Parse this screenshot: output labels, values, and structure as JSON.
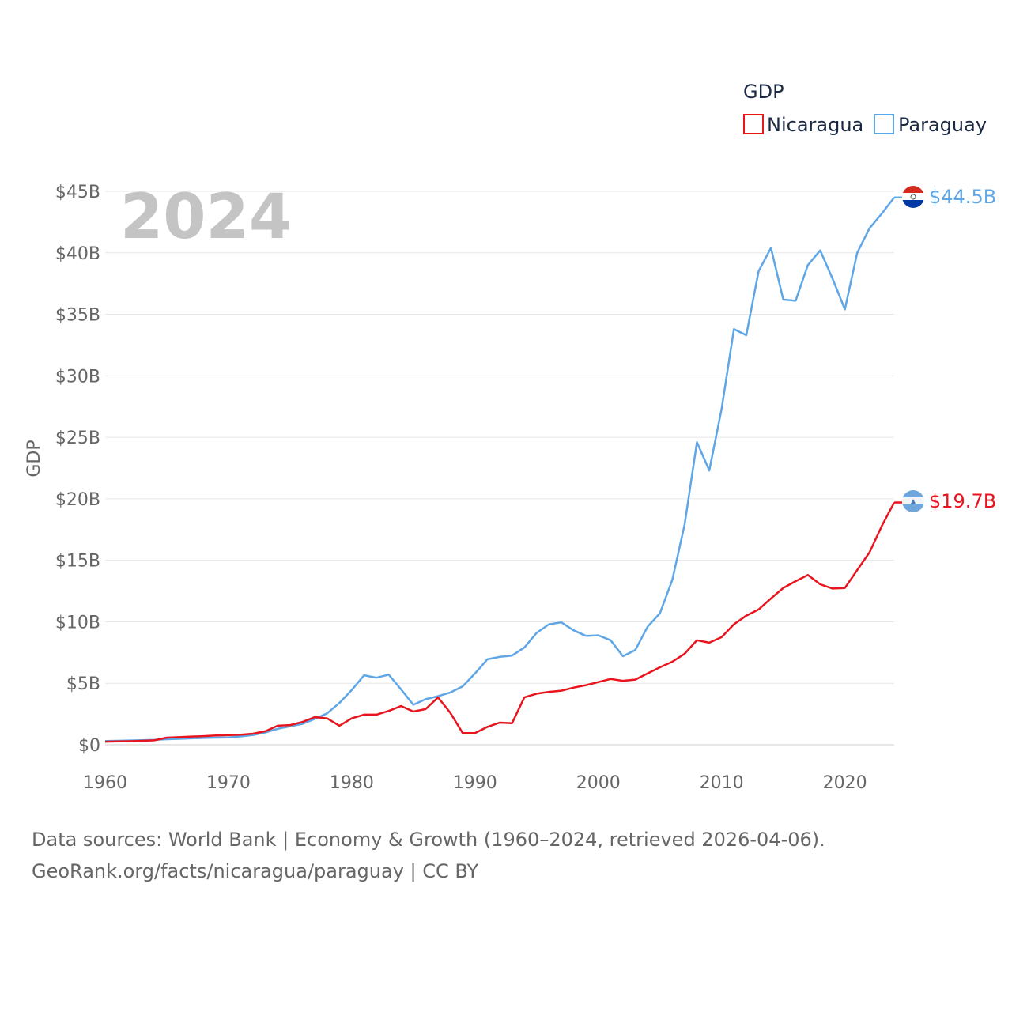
{
  "chart_data": {
    "type": "line",
    "ylabel": "GDP",
    "legend_title": "GDP",
    "legend_position": "top-right",
    "year_label": "2024",
    "x_ticks": [
      1960,
      1970,
      1980,
      1990,
      2000,
      2010,
      2020
    ],
    "x_tick_labels": [
      "1960",
      "1970",
      "1980",
      "1990",
      "2000",
      "2010",
      "2020"
    ],
    "y_ticks": [
      0,
      5,
      10,
      15,
      20,
      25,
      30,
      35,
      40,
      45
    ],
    "y_tick_labels": [
      "$0",
      "$5B",
      "$10B",
      "$15B",
      "$20B",
      "$25B",
      "$30B",
      "$35B",
      "$40B",
      "$45B"
    ],
    "xlim": [
      1960,
      2024
    ],
    "ylim": [
      0,
      45
    ],
    "grid": true,
    "x": [
      1960,
      1961,
      1962,
      1963,
      1964,
      1965,
      1966,
      1967,
      1968,
      1969,
      1970,
      1971,
      1972,
      1973,
      1974,
      1975,
      1976,
      1977,
      1978,
      1979,
      1980,
      1981,
      1982,
      1983,
      1984,
      1985,
      1986,
      1987,
      1988,
      1989,
      1990,
      1991,
      1992,
      1993,
      1994,
      1995,
      1996,
      1997,
      1998,
      1999,
      2000,
      2001,
      2002,
      2003,
      2004,
      2005,
      2006,
      2007,
      2008,
      2009,
      2010,
      2011,
      2012,
      2013,
      2014,
      2015,
      2016,
      2017,
      2018,
      2019,
      2020,
      2021,
      2022,
      2023,
      2024
    ],
    "series": [
      {
        "name": "Nicaragua",
        "color": "#e8141e",
        "end_label": "$19.7B",
        "flag": "nicaragua-flag",
        "values": [
          0.25,
          0.27,
          0.29,
          0.32,
          0.36,
          0.58,
          0.62,
          0.67,
          0.7,
          0.75,
          0.78,
          0.82,
          0.9,
          1.1,
          1.55,
          1.6,
          1.85,
          2.25,
          2.15,
          1.55,
          2.15,
          2.45,
          2.45,
          2.75,
          3.15,
          2.7,
          2.9,
          3.85,
          2.6,
          0.95,
          0.95,
          1.45,
          1.8,
          1.75,
          3.85,
          4.15,
          4.3,
          4.4,
          4.65,
          4.85,
          5.1,
          5.35,
          5.2,
          5.3,
          5.8,
          6.3,
          6.75,
          7.4,
          8.5,
          8.3,
          8.75,
          9.8,
          10.5,
          11.0,
          11.9,
          12.75,
          13.3,
          13.8,
          13.05,
          12.7,
          12.75,
          14.2,
          15.65,
          17.8,
          19.7
        ]
      },
      {
        "name": "Paraguay",
        "color": "#5ea6e6",
        "end_label": "$44.5B",
        "flag": "paraguay-flag",
        "values": [
          0.3,
          0.32,
          0.35,
          0.37,
          0.4,
          0.45,
          0.48,
          0.52,
          0.55,
          0.58,
          0.6,
          0.68,
          0.8,
          1.0,
          1.3,
          1.5,
          1.7,
          2.1,
          2.55,
          3.4,
          4.45,
          5.65,
          5.45,
          5.7,
          4.5,
          3.25,
          3.7,
          3.95,
          4.25,
          4.75,
          5.8,
          6.95,
          7.15,
          7.25,
          7.9,
          9.1,
          9.8,
          9.95,
          9.3,
          8.85,
          8.9,
          8.5,
          7.2,
          7.7,
          9.6,
          10.7,
          13.4,
          17.9,
          24.6,
          22.3,
          27.3,
          33.8,
          33.3,
          38.5,
          40.4,
          36.2,
          36.1,
          39.0,
          40.2,
          37.9,
          35.4,
          40.0,
          42.0,
          43.2,
          44.5
        ]
      }
    ]
  },
  "footer": {
    "line1": "Data sources: World Bank | Economy & Growth (1960–2024, retrieved 2026-04-06).",
    "line2": "GeoRank.org/facts/nicaragua/paraguay | CC BY"
  }
}
